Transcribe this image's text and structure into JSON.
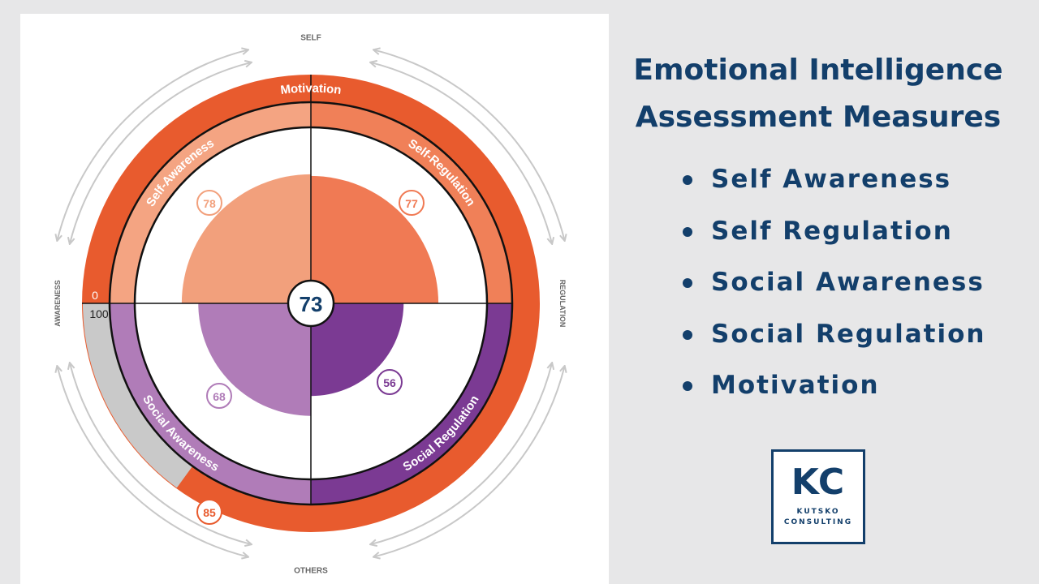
{
  "heading": {
    "line1": "Emotional Intelligence",
    "line2": "Assessment Measures"
  },
  "measures": [
    {
      "label": "Self Awareness"
    },
    {
      "label": "Self Regulation"
    },
    {
      "label": "Social Awareness"
    },
    {
      "label": "Social Regulation"
    },
    {
      "label": "Motivation"
    }
  ],
  "logo": {
    "initials": "KC",
    "line1": "KUTSKO",
    "line2": "CONSULTING"
  },
  "chart_data": {
    "type": "polar-area",
    "center_score": 73,
    "outer_ring": {
      "label": "Motivation",
      "score": 85,
      "scale_min_label": "0",
      "scale_max_label": "100",
      "color": "#e85b2e"
    },
    "quadrants": [
      {
        "name": "Self-Awareness",
        "score": 78,
        "color": "#f2a07c",
        "band_color": "#f4a482"
      },
      {
        "name": "Self-Regulation",
        "score": 77,
        "color": "#f07a54",
        "band_color": "#f08058"
      },
      {
        "name": "Social Regulation",
        "score": 56,
        "color": "#7b3a93",
        "band_color": "#7b3a93"
      },
      {
        "name": "Social Awareness",
        "score": 68,
        "color": "#b07cb8",
        "band_color": "#b07cb8"
      }
    ],
    "axis_labels": {
      "top": "SELF",
      "right": "REGULATION",
      "bottom": "OTHERS",
      "left": "AWARENESS"
    }
  },
  "colors": {
    "navy": "#133f6b",
    "arrow_gray": "#c8c8c8",
    "page_bg": "#e7e7e8"
  }
}
